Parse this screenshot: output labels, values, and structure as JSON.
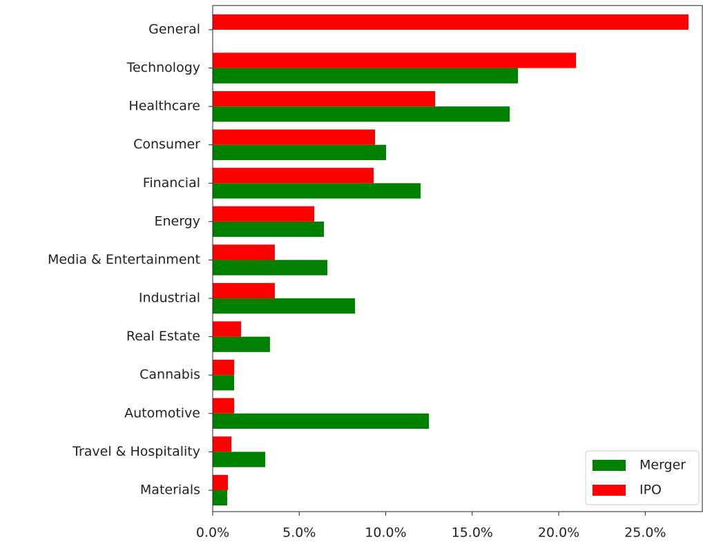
{
  "chart_data": {
    "type": "barh",
    "categories": [
      "General",
      "Technology",
      "Healthcare",
      "Consumer",
      "Financial",
      "Energy",
      "Media & Entertainment",
      "Industrial",
      "Real Estate",
      "Cannabis",
      "Automotive",
      "Travel & Hospitality",
      "Materials"
    ],
    "series": [
      {
        "name": "Merger",
        "color": "#008000",
        "values": [
          0,
          17.65,
          17.17,
          10.02,
          12.02,
          6.43,
          6.63,
          8.23,
          3.31,
          1.24,
          12.5,
          3.04,
          0.84
        ]
      },
      {
        "name": "IPO",
        "color": "#ff0000",
        "values": [
          27.5,
          21.0,
          12.86,
          9.38,
          9.3,
          5.87,
          3.59,
          3.59,
          1.64,
          1.24,
          1.24,
          1.08,
          0.88
        ]
      }
    ],
    "xlim": [
      0,
      28.3
    ],
    "xticks": [
      {
        "value": 0,
        "label": "0.0%"
      },
      {
        "value": 5,
        "label": "5.0%"
      },
      {
        "value": 10,
        "label": "10.0%"
      },
      {
        "value": 15,
        "label": "15.0%"
      },
      {
        "value": 20,
        "label": "20.0%"
      },
      {
        "value": 25,
        "label": "25.0%"
      }
    ],
    "legend": "lower right"
  }
}
